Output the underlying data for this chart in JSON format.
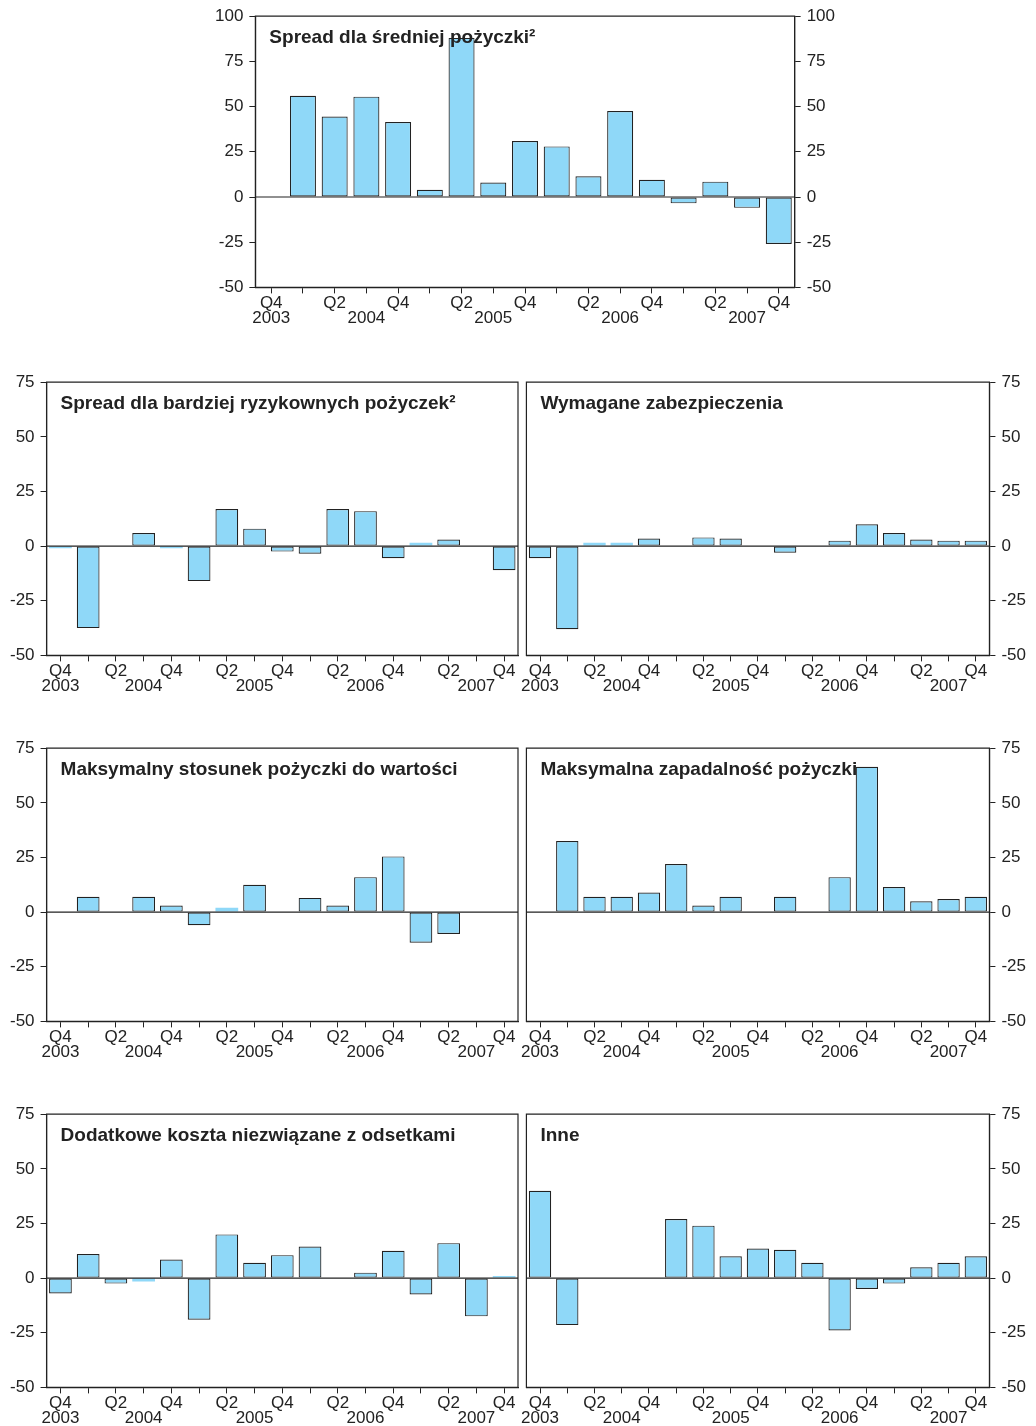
{
  "chart_data": [
    {
      "type": "bar",
      "title": "Spread dla średniej pożyczki²",
      "categories": [
        "Q4\n2003",
        null,
        "Q2",
        "\n2004",
        "Q4",
        null,
        "Q2",
        "\n2005",
        "Q4",
        null,
        "Q2",
        "\n2006",
        "Q4",
        null,
        "Q2",
        "\n2007",
        "Q4"
      ],
      "series": [
        {
          "color": "#8fd8f8",
          "values": [
            null,
            56,
            44.5,
            55.5,
            41.5,
            4,
            88,
            8,
            31,
            28,
            11.5,
            47.5,
            9.5,
            -3.5,
            8.5,
            -6,
            -26
          ]
        }
      ],
      "ylim": [
        -50,
        100
      ],
      "yticks": [
        -50,
        -25,
        0,
        25,
        50,
        75,
        100
      ],
      "y2lim": [
        -50,
        100
      ],
      "y2ticks": [
        -50,
        -25,
        0,
        25,
        50,
        75,
        100
      ]
    },
    {
      "type": "bar",
      "title": "Spread dla bardziej ryzykownych pożyczek²",
      "categories": [
        "Q4\n2003",
        null,
        "Q2",
        "\n2004",
        "Q4",
        null,
        "Q2",
        "\n2005",
        "Q4",
        null,
        "Q2",
        "\n2006",
        "Q4",
        null,
        "Q2",
        "\n2007",
        "Q4"
      ],
      "series": [
        {
          "color": "#8fd8f8",
          "values": [
            -1,
            -37.5,
            0,
            6,
            -1,
            -16,
            17,
            8,
            -2.5,
            -3.5,
            17,
            16,
            -5.5,
            1.5,
            3,
            0,
            -11
          ]
        }
      ],
      "ylim": [
        -50,
        75
      ],
      "yticks": [
        -50,
        -25,
        0,
        25,
        50,
        75
      ]
    },
    {
      "type": "bar",
      "title": "Wymagane zabezpieczenia",
      "categories": [
        "Q4\n2003",
        null,
        "Q2",
        "\n2004",
        "Q4",
        null,
        "Q2",
        "\n2005",
        "Q4",
        null,
        "Q2",
        "\n2006",
        "Q4",
        null,
        "Q2",
        "\n2007",
        "Q4"
      ],
      "series": [
        {
          "color": "#8fd8f8",
          "axis": "y2",
          "values": [
            -5.5,
            -38,
            1.5,
            1.5,
            3.5,
            0,
            4,
            3.5,
            0,
            -3,
            0,
            2.5,
            10,
            6,
            3,
            2.5,
            2.5
          ]
        }
      ],
      "y2lim": [
        -50,
        75
      ],
      "y2ticks": [
        -50,
        -25,
        0,
        25,
        50,
        75
      ]
    },
    {
      "type": "bar",
      "title": "Maksymalny stosunek pożyczki do wartości",
      "categories": [
        "Q4\n2003",
        null,
        "Q2",
        "\n2004",
        "Q4",
        null,
        "Q2",
        "\n2005",
        "Q4",
        null,
        "Q2",
        "\n2006",
        "Q4",
        null,
        "Q2",
        "\n2007",
        "Q4"
      ],
      "series": [
        {
          "color": "#8fd8f8",
          "values": [
            0,
            7,
            0,
            7,
            3,
            -6,
            2,
            12.5,
            0,
            6.5,
            3,
            16,
            25.5,
            -14,
            -10,
            0,
            0
          ]
        }
      ],
      "ylim": [
        -50,
        75
      ],
      "yticks": [
        -50,
        -25,
        0,
        25,
        50,
        75
      ]
    },
    {
      "type": "bar",
      "title": "Maksymalna zapadalność pożyczki",
      "categories": [
        "Q4\n2003",
        null,
        "Q2",
        "\n2004",
        "Q4",
        null,
        "Q2",
        "\n2005",
        "Q4",
        null,
        "Q2",
        "\n2006",
        "Q4",
        null,
        "Q2",
        "\n2007",
        "Q4"
      ],
      "series": [
        {
          "color": "#8fd8f8",
          "axis": "y2",
          "values": [
            null,
            32.5,
            7,
            7,
            9,
            22,
            3,
            7,
            0,
            7,
            0,
            16,
            66.5,
            11.5,
            5,
            6,
            7
          ]
        }
      ],
      "y2lim": [
        -50,
        75
      ],
      "y2ticks": [
        -50,
        -25,
        0,
        25,
        50,
        75
      ]
    },
    {
      "type": "bar",
      "title": "Dodatkowe koszta niezwiązane z odsetkami",
      "categories": [
        "Q4\n2003",
        null,
        "Q2",
        "\n2004",
        "Q4",
        null,
        "Q2",
        "\n2005",
        "Q4",
        null,
        "Q2",
        "\n2006",
        "Q4",
        null,
        "Q2",
        "\n2007",
        "Q4"
      ],
      "series": [
        {
          "color": "#8fd8f8",
          "values": [
            -7,
            11,
            -2.5,
            -1.5,
            8.5,
            -19,
            20,
            7,
            10.5,
            14.5,
            0,
            2.5,
            12.5,
            -7.5,
            16,
            -17.5,
            1
          ]
        }
      ],
      "ylim": [
        -50,
        75
      ],
      "yticks": [
        -50,
        -25,
        0,
        25,
        50,
        75
      ]
    },
    {
      "type": "bar",
      "title": "Inne",
      "categories": [
        "Q4\n2003",
        null,
        "Q2",
        "\n2004",
        "Q4",
        null,
        "Q2",
        "\n2005",
        "Q4",
        null,
        "Q2",
        "\n2006",
        "Q4",
        null,
        "Q2",
        "\n2007",
        "Q4"
      ],
      "series": [
        {
          "color": "#8fd8f8",
          "axis": "y2",
          "values": [
            40,
            -21.5,
            0,
            0,
            0,
            27,
            24,
            10,
            13.5,
            13,
            7,
            -24,
            -5,
            -2.5,
            5,
            7,
            10
          ]
        }
      ],
      "y2lim": [
        -50,
        75
      ],
      "y2ticks": [
        -50,
        -25,
        0,
        25,
        50,
        75
      ]
    }
  ]
}
